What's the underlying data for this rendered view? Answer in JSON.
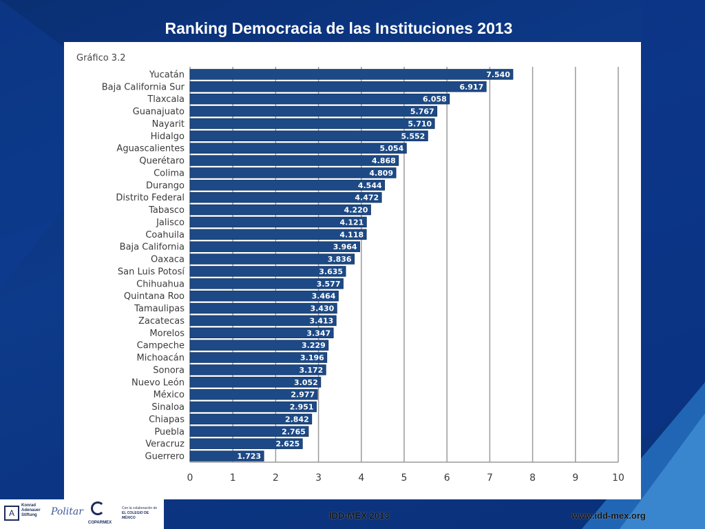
{
  "slide": {
    "title": "Ranking Democracia de las Instituciones 2013"
  },
  "footer": {
    "left_text": "IDD-MEX  2013",
    "right_text": "www.idd-mex.org",
    "logos": {
      "kas": "Konrad Adenauer Stiftung",
      "kas_mark": "A",
      "politar": "Politar",
      "coparmex": "COPARMEX",
      "colmex_collab": "Con la colaboración de",
      "colmex": "EL COLEGIO DE MÉXICO"
    }
  },
  "colors": {
    "bar": "#1d4a86",
    "bar_edge": "#0f2f5c",
    "label": "#3a3a3a",
    "grid": "#9a9a9a",
    "background": "#0c3580"
  },
  "chart_data": {
    "type": "bar",
    "orientation": "horizontal",
    "title": "Gráfico 3.2",
    "xlim": [
      0,
      10
    ],
    "xticks": [
      0,
      1,
      2,
      3,
      4,
      5,
      6,
      7,
      8,
      9,
      10
    ],
    "grid": true,
    "categories": [
      "Yucatán",
      "Baja California Sur",
      "Tlaxcala",
      "Guanajuato",
      "Nayarit",
      "Hidalgo",
      "Aguascalientes",
      "Querétaro",
      "Colima",
      "Durango",
      "Distrito Federal",
      "Tabasco",
      "Jalisco",
      "Coahuila",
      "Baja California",
      "Oaxaca",
      "San Luis Potosí",
      "Chihuahua",
      "Quintana Roo",
      "Tamaulipas",
      "Zacatecas",
      "Morelos",
      "Campeche",
      "Michoacán",
      "Sonora",
      "Nuevo León",
      "México",
      "Sinaloa",
      "Chiapas",
      "Puebla",
      "Veracruz",
      "Guerrero"
    ],
    "values": [
      7.54,
      6.917,
      6.058,
      5.767,
      5.71,
      5.552,
      5.054,
      4.868,
      4.809,
      4.544,
      4.472,
      4.22,
      4.121,
      4.118,
      3.964,
      3.836,
      3.635,
      3.577,
      3.464,
      3.43,
      3.413,
      3.347,
      3.229,
      3.196,
      3.172,
      3.052,
      2.977,
      2.951,
      2.842,
      2.765,
      2.625,
      1.723
    ],
    "value_labels": [
      "7.540",
      "6.917",
      "6.058",
      "5.767",
      "5.710",
      "5.552",
      "5.054",
      "4.868",
      "4.809",
      "4.544",
      "4.472",
      "4.220",
      "4.121",
      "4.118",
      "3.964",
      "3.836",
      "3.635",
      "3.577",
      "3.464",
      "3.430",
      "3.413",
      "3.347",
      "3.229",
      "3.196",
      "3.172",
      "3.052",
      "2.977",
      "2.951",
      "2.842",
      "2.765",
      "2.625",
      "1.723"
    ]
  }
}
